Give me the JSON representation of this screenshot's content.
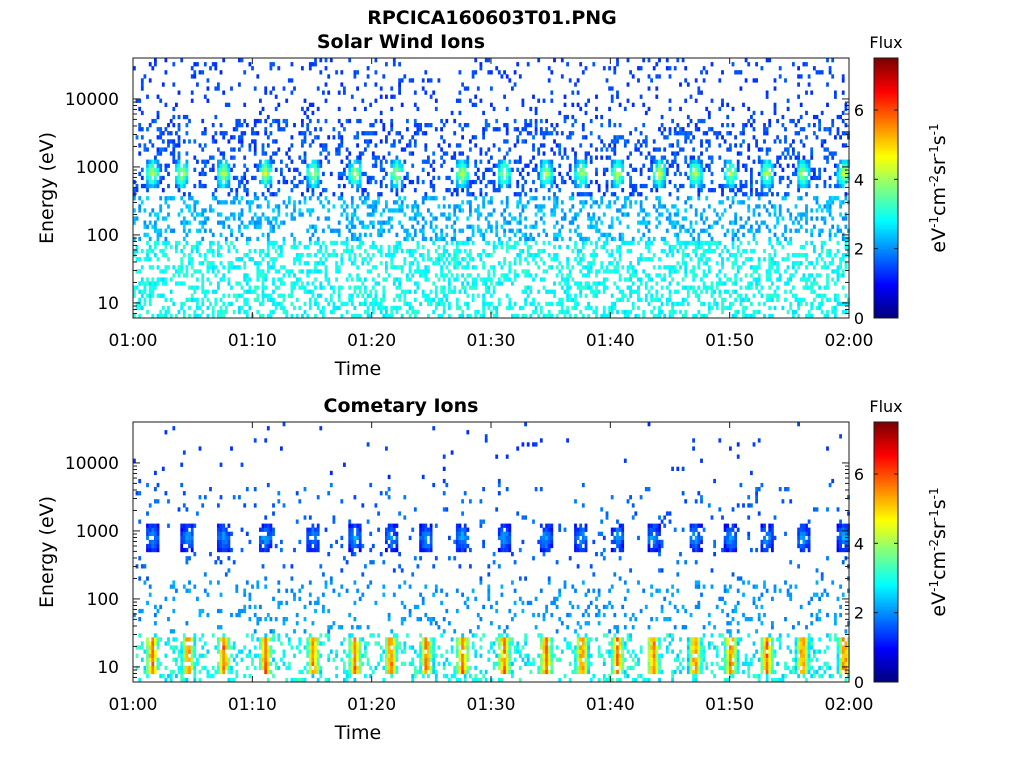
{
  "figure": {
    "title": "RPCICA160603T01.PNG",
    "colors": {
      "background": "#ffffff",
      "axis": "#1a1a1a"
    },
    "colormap": "jet"
  },
  "chart_data": [
    {
      "type": "heatmap",
      "title": "Solar Wind Ions",
      "xlabel": "Time",
      "ylabel": "Energy (eV)",
      "yscale": "log",
      "x_ticks": [
        "01:00",
        "01:10",
        "01:20",
        "01:30",
        "01:40",
        "01:50",
        "02:00"
      ],
      "x_range": [
        "01:00",
        "02:00"
      ],
      "y_ticks": [
        10,
        100,
        1000,
        10000
      ],
      "y_range": [
        6,
        40000
      ],
      "colorbar": {
        "label": "Flux",
        "units": "eV-1cm-2sr-1s-1",
        "ticks": [
          0,
          2,
          4,
          6
        ],
        "range": [
          0,
          7.5
        ]
      },
      "features": {
        "periodic_peak_times_min": [
          1.5,
          4,
          7.5,
          11,
          15,
          18.5,
          22,
          27.5,
          31,
          34.5,
          37.5,
          40.5,
          44,
          47,
          50,
          53,
          56,
          59.5
        ],
        "peak_energy_ev": 800,
        "peak_flux": 4.2,
        "background_high_energy_flux": 1.2,
        "background_low_energy_flux": 2.6
      }
    },
    {
      "type": "heatmap",
      "title": "Cometary Ions",
      "xlabel": "Time",
      "ylabel": "Energy (eV)",
      "yscale": "log",
      "x_ticks": [
        "01:00",
        "01:10",
        "01:20",
        "01:30",
        "01:40",
        "01:50",
        "02:00"
      ],
      "x_range": [
        "01:00",
        "02:00"
      ],
      "y_ticks": [
        10,
        100,
        1000,
        10000
      ],
      "y_range": [
        6,
        40000
      ],
      "colorbar": {
        "label": "Flux",
        "units": "eV-1cm-2sr-1s-1",
        "ticks": [
          0,
          2,
          4,
          6
        ],
        "range": [
          0,
          7.5
        ]
      },
      "features": {
        "periodic_peak_times_min": [
          1.5,
          4.5,
          7.5,
          11,
          15,
          18.5,
          21.5,
          24.5,
          27.5,
          31,
          34.5,
          37.5,
          40.5,
          43.5,
          47,
          50,
          53,
          56,
          59.5
        ],
        "peak_energy_ev": 800,
        "peak_flux": 2.0,
        "low_energy_peak_ev": 15,
        "low_energy_peak_flux": 5.5,
        "background_flux": 1.8
      }
    }
  ]
}
